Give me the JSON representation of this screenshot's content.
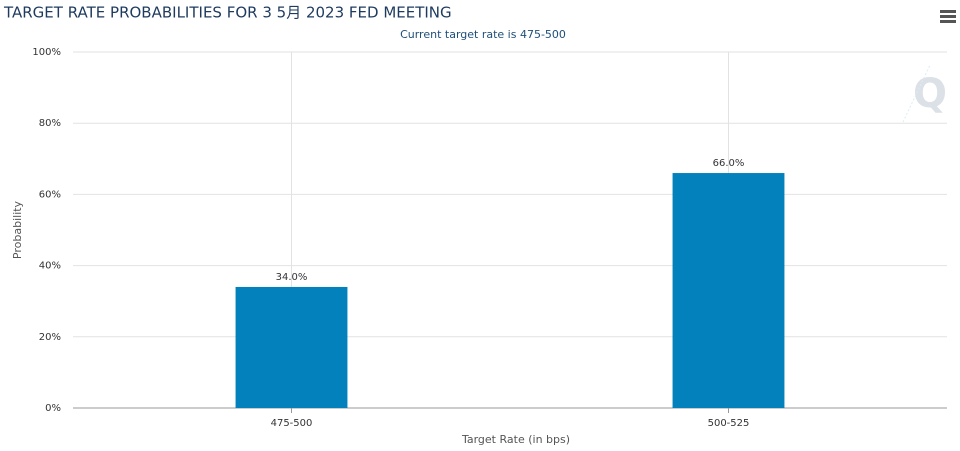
{
  "chart_data": {
    "type": "bar",
    "title": "TARGET RATE PROBABILITIES FOR 3 5月 2023 FED MEETING",
    "subtitle": "Current target rate is 475-500",
    "x_label": "Target Rate (in bps)",
    "y_label": "Probability",
    "categories": [
      "475-500",
      "500-525"
    ],
    "values": [
      34,
      66
    ],
    "value_labels": [
      "34.0%",
      "66.0%"
    ],
    "color": "#0281bc",
    "ylim": [
      0,
      100
    ],
    "yticks": [
      {
        "value": 0,
        "label": "0%"
      },
      {
        "value": 20,
        "label": "20%"
      },
      {
        "value": 40,
        "label": "40%"
      },
      {
        "value": 60,
        "label": "60%"
      },
      {
        "value": 80,
        "label": "80%"
      },
      {
        "value": 100,
        "label": "100%"
      }
    ],
    "grid": true
  }
}
